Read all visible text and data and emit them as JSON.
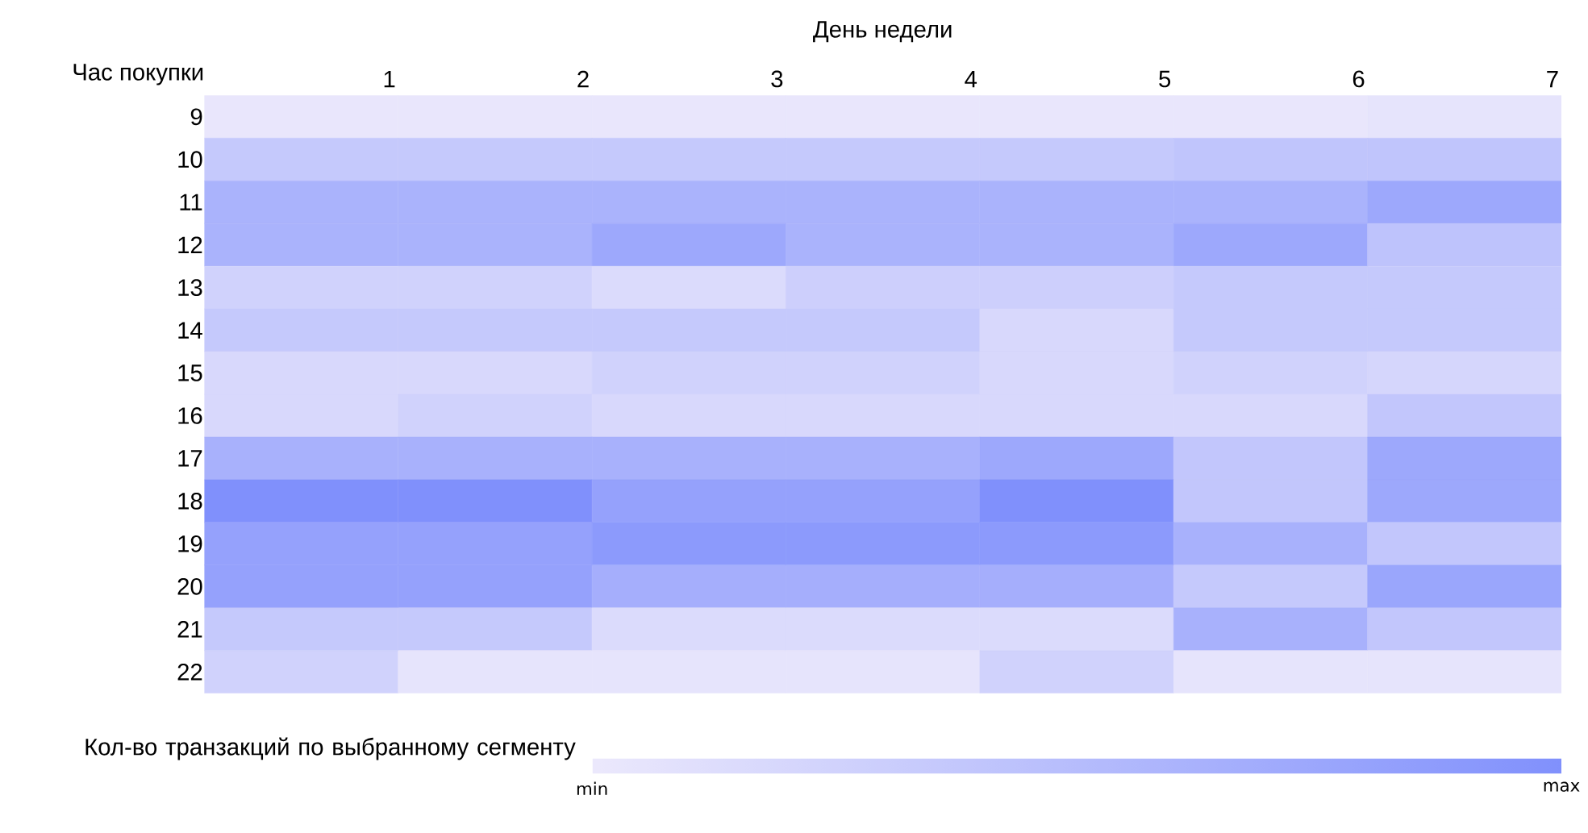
{
  "chart_data": {
    "type": "heatmap",
    "title": "День недели",
    "ylabel": "Час покупки",
    "clabel": "Кол-во транзакций по выбранному сегменту",
    "categories": [
      "1",
      "2",
      "3",
      "4",
      "5",
      "6",
      "7"
    ],
    "y_categories": [
      "9",
      "10",
      "11",
      "12",
      "13",
      "14",
      "15",
      "16",
      "17",
      "18",
      "19",
      "20",
      "21",
      "22"
    ],
    "cells": [
      [
        0.02,
        0.02,
        0.02,
        0.02,
        0.02,
        0.02,
        0.05
      ],
      [
        0.35,
        0.35,
        0.35,
        0.35,
        0.35,
        0.4,
        0.4
      ],
      [
        0.6,
        0.6,
        0.6,
        0.6,
        0.6,
        0.6,
        0.72
      ],
      [
        0.6,
        0.6,
        0.72,
        0.6,
        0.6,
        0.72,
        0.42
      ],
      [
        0.25,
        0.25,
        0.15,
        0.28,
        0.28,
        0.35,
        0.35
      ],
      [
        0.35,
        0.35,
        0.35,
        0.35,
        0.18,
        0.35,
        0.35
      ],
      [
        0.18,
        0.18,
        0.25,
        0.25,
        0.18,
        0.25,
        0.2
      ],
      [
        0.18,
        0.25,
        0.18,
        0.18,
        0.18,
        0.18,
        0.38
      ],
      [
        0.62,
        0.62,
        0.62,
        0.62,
        0.72,
        0.38,
        0.72
      ],
      [
        1.0,
        1.0,
        0.8,
        0.8,
        1.0,
        0.38,
        0.72
      ],
      [
        0.8,
        0.8,
        0.88,
        0.88,
        0.88,
        0.62,
        0.38
      ],
      [
        0.8,
        0.8,
        0.65,
        0.65,
        0.65,
        0.35,
        0.75
      ],
      [
        0.35,
        0.35,
        0.15,
        0.15,
        0.15,
        0.62,
        0.38
      ],
      [
        0.25,
        0.05,
        0.05,
        0.05,
        0.25,
        0.05,
        0.05
      ]
    ],
    "clim": [
      0,
      1
    ],
    "cticks": [
      {
        "value": 0,
        "label": "min"
      },
      {
        "value": 1,
        "label": "max"
      }
    ]
  }
}
